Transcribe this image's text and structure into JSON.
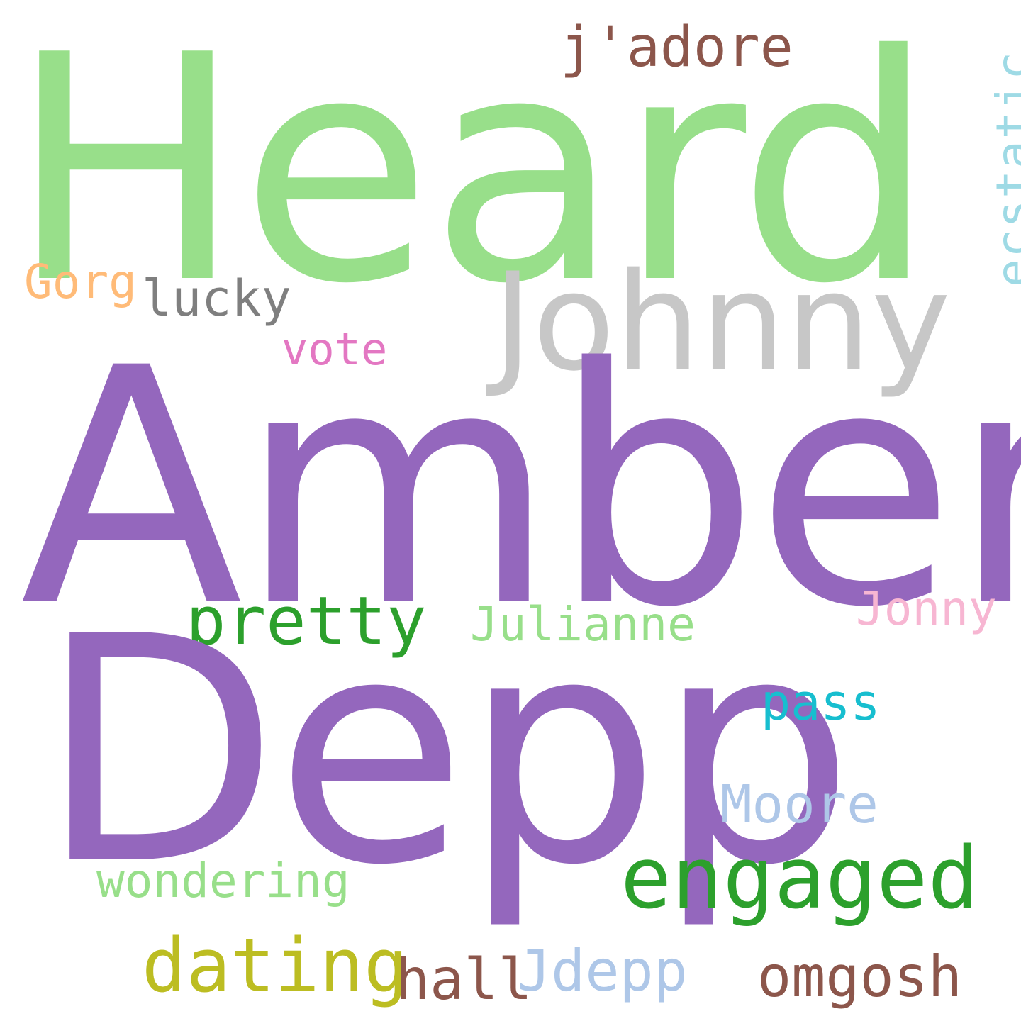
{
  "words": {
    "heard": {
      "text": "Heard",
      "color": "#98df8a"
    },
    "amber": {
      "text": "Amber",
      "color": "#9467bd"
    },
    "depp": {
      "text": "Depp",
      "color": "#9467bd"
    },
    "johnny": {
      "text": "Johnny",
      "color": "#c7c7c7"
    },
    "jadore": {
      "text": "j'adore",
      "color": "#8c564b"
    },
    "ecstatic": {
      "text": "ecstatic",
      "color": "#9edae5"
    },
    "gorg": {
      "text": "Gorg",
      "color": "#ffbb78"
    },
    "lucky": {
      "text": "lucky",
      "color": "#7f7f7f"
    },
    "vote": {
      "text": "vote",
      "color": "#e377c2"
    },
    "pretty": {
      "text": "pretty",
      "color": "#2ca02c"
    },
    "julianne": {
      "text": "Julianne",
      "color": "#98df8a"
    },
    "jonny": {
      "text": "Jonny",
      "color": "#f7b6d2"
    },
    "pass": {
      "text": "pass",
      "color": "#17becf"
    },
    "moore": {
      "text": "Moore",
      "color": "#aec7e8"
    },
    "wondering": {
      "text": "wondering",
      "color": "#98df8a"
    },
    "engaged": {
      "text": "engaged",
      "color": "#2ca02c"
    },
    "dating": {
      "text": "dating",
      "color": "#bcbd22"
    },
    "hall": {
      "text": "hall",
      "color": "#8c564b"
    },
    "jdepp": {
      "text": "Jdepp",
      "color": "#aec7e8"
    },
    "omgosh": {
      "text": "omgosh",
      "color": "#8c564b"
    }
  }
}
